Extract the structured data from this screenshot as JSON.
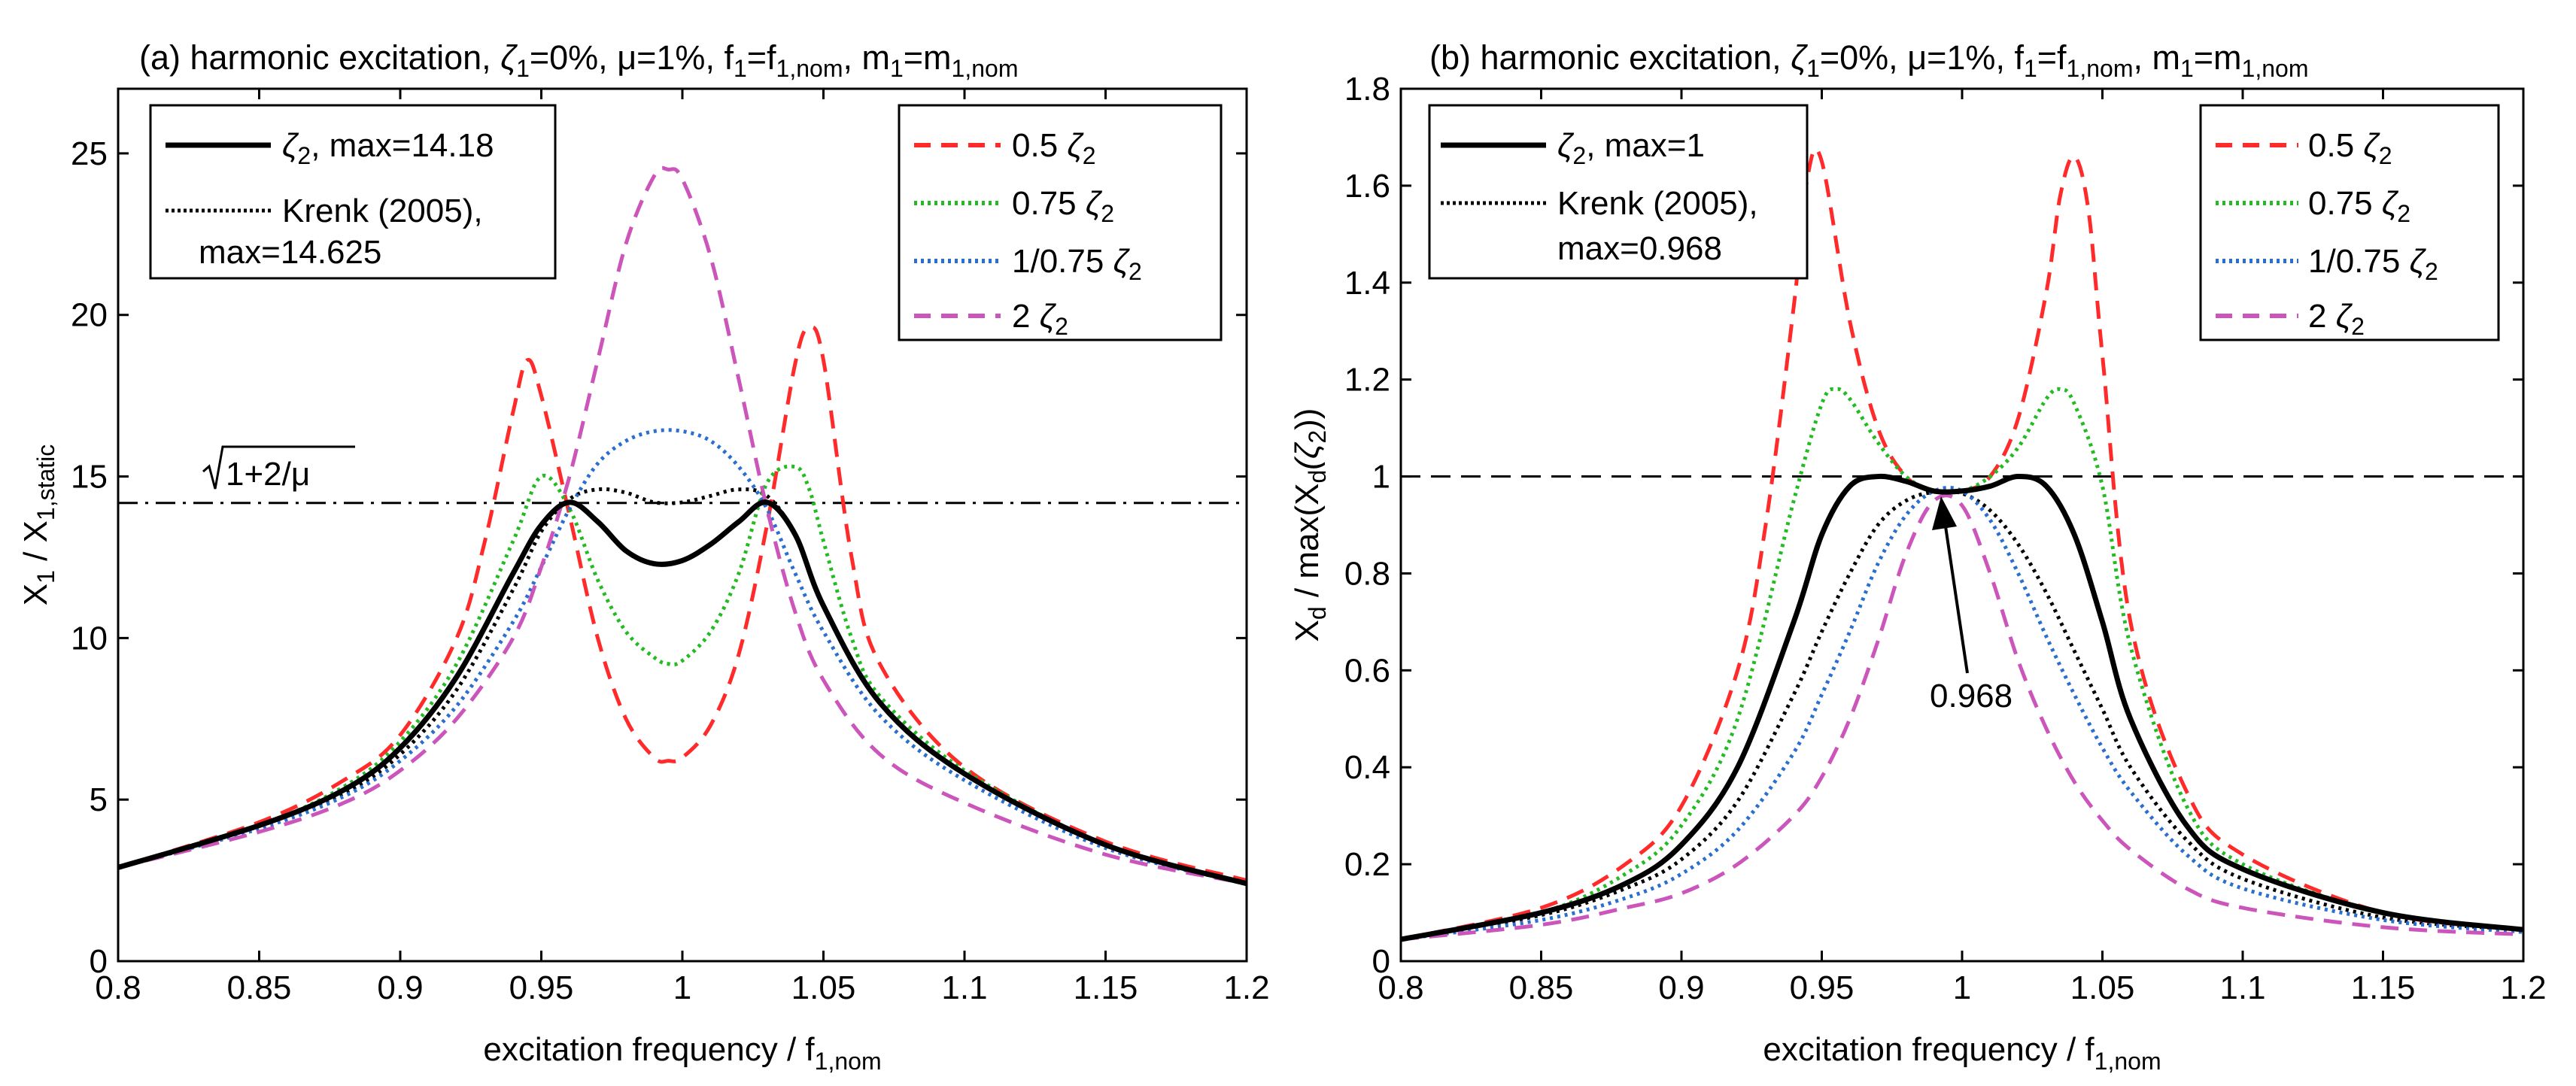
{
  "chart_data": [
    {
      "panel": "a",
      "type": "line",
      "title": "(a) harmonic excitation, ζ1=0%, μ=1%, f1=f1,nom, m1=m1,nom",
      "title_parts": {
        "prefix": "(a) harmonic excitation, ",
        "z": "ζ",
        "z_sub": "1",
        "eq0": "=0%, ",
        "mu": "μ",
        "eq1": "=1%, f",
        "f_sub": "1",
        "eq2": "=f",
        "fnom_sub": "1,nom",
        "eq3": ", m",
        "m_sub": "1",
        "eq4": "=m",
        "mnom_sub": "1,nom"
      },
      "xlabel": "excitation frequency / f1,nom",
      "xlabel_parts": {
        "main": "excitation frequency / f",
        "sub": "1,nom"
      },
      "ylabel": "X1 / X1,static",
      "ylabel_parts": {
        "a": "X",
        "a_sub": "1",
        "b": " / X",
        "b_sub": "1,static"
      },
      "xlim": [
        0.8,
        1.2
      ],
      "ylim": [
        0,
        27
      ],
      "xticks": [
        "0.8",
        "0.85",
        "0.9",
        "0.95",
        "1",
        "1.05",
        "1.1",
        "1.15",
        "1.2"
      ],
      "yticks": [
        "0",
        "5",
        "10",
        "15",
        "20",
        "25"
      ],
      "reference_line": {
        "y": 14.18,
        "label": "√1+2/μ",
        "label_root": "1+2/μ",
        "style": "dashdot"
      },
      "legend_left": [
        {
          "series": "zeta2",
          "line1": "ζ2, max=14.18",
          "sym": "ζ",
          "sub": "2",
          "rest": ", max=14.18"
        },
        {
          "series": "krenk",
          "line1": "Krenk (2005),",
          "line2": "max=14.625"
        }
      ],
      "legend_right": [
        {
          "series": "half",
          "label": "0.5 ζ2",
          "pre": "0.5 ",
          "sym": "ζ",
          "sub": "2"
        },
        {
          "series": "threequarter",
          "label": "0.75 ζ2",
          "pre": "0.75 ",
          "sym": "ζ",
          "sub": "2"
        },
        {
          "series": "inv",
          "label": "1/0.75 ζ2",
          "pre": "1/0.75 ",
          "sym": "ζ",
          "sub": "2"
        },
        {
          "series": "double",
          "label": "2 ζ2",
          "pre": "2 ",
          "sym": "ζ",
          "sub": "2"
        }
      ],
      "series": [
        {
          "id": "zeta2",
          "name": "ζ2, max=14.18",
          "color": "#000000",
          "dash": "solid",
          "width": 7,
          "x": [
            0.8,
            0.85,
            0.88,
            0.9,
            0.92,
            0.94,
            0.95,
            0.96,
            0.97,
            0.98,
            0.99,
            1.0,
            1.01,
            1.02,
            1.03,
            1.04,
            1.05,
            1.07,
            1.1,
            1.15,
            1.2
          ],
          "y": [
            2.9,
            4.2,
            5.3,
            6.6,
            8.8,
            12.0,
            13.5,
            14.2,
            13.6,
            12.7,
            12.3,
            12.4,
            12.9,
            13.6,
            14.2,
            13.2,
            11.0,
            8.0,
            5.8,
            3.6,
            2.4
          ]
        },
        {
          "id": "krenk",
          "name": "Krenk (2005)",
          "color": "#000000",
          "dash": "dotted",
          "width": 5,
          "x": [
            0.8,
            0.85,
            0.88,
            0.9,
            0.92,
            0.94,
            0.95,
            0.96,
            0.97,
            0.98,
            0.99,
            1.0,
            1.01,
            1.02,
            1.03,
            1.04,
            1.05,
            1.07,
            1.1,
            1.15,
            1.2
          ],
          "y": [
            2.9,
            4.2,
            5.2,
            6.4,
            8.4,
            11.5,
            13.3,
            14.3,
            14.6,
            14.5,
            14.2,
            14.2,
            14.4,
            14.6,
            14.4,
            13.2,
            11.0,
            8.0,
            5.8,
            3.6,
            2.4
          ]
        },
        {
          "id": "half",
          "name": "0.5 ζ2",
          "color": "#ff2b2b",
          "dash": "dashed",
          "width": 5,
          "x": [
            0.8,
            0.85,
            0.88,
            0.9,
            0.92,
            0.93,
            0.94,
            0.945,
            0.95,
            0.96,
            0.97,
            0.98,
            0.99,
            0.995,
            1.0,
            1.01,
            1.02,
            1.03,
            1.04,
            1.045,
            1.05,
            1.06,
            1.07,
            1.1,
            1.15,
            1.2
          ],
          "y": [
            2.9,
            4.3,
            5.6,
            7.0,
            10.0,
            13.0,
            17.0,
            18.6,
            17.5,
            13.8,
            10.0,
            7.5,
            6.3,
            6.2,
            6.3,
            7.3,
            9.5,
            13.5,
            18.5,
            19.6,
            18.6,
            12.5,
            9.2,
            6.0,
            3.7,
            2.5
          ]
        },
        {
          "id": "threequarter",
          "name": "0.75 ζ2",
          "color": "#22bb22",
          "dash": "dotted",
          "width": 5,
          "x": [
            0.8,
            0.85,
            0.88,
            0.9,
            0.92,
            0.94,
            0.95,
            0.96,
            0.97,
            0.98,
            0.99,
            0.995,
            1.0,
            1.01,
            1.02,
            1.03,
            1.04,
            1.045,
            1.05,
            1.06,
            1.07,
            1.1,
            1.15,
            1.2
          ],
          "y": [
            2.9,
            4.2,
            5.4,
            6.8,
            9.2,
            13.0,
            15.0,
            14.0,
            11.8,
            10.2,
            9.4,
            9.2,
            9.3,
            10.2,
            12.0,
            14.8,
            15.3,
            14.6,
            13.0,
            10.0,
            8.2,
            5.9,
            3.6,
            2.4
          ]
        },
        {
          "id": "inv",
          "name": "1/0.75 ζ2",
          "color": "#2a6fcf",
          "dash": "dotted",
          "width": 5,
          "x": [
            0.8,
            0.85,
            0.88,
            0.9,
            0.92,
            0.94,
            0.95,
            0.96,
            0.97,
            0.98,
            0.99,
            1.0,
            1.01,
            1.02,
            1.03,
            1.04,
            1.05,
            1.07,
            1.1,
            1.15,
            1.2
          ],
          "y": [
            2.9,
            4.1,
            5.1,
            6.2,
            7.9,
            10.5,
            12.2,
            14.0,
            15.4,
            16.1,
            16.4,
            16.4,
            16.1,
            15.3,
            14.0,
            12.0,
            10.2,
            7.6,
            5.6,
            3.5,
            2.4
          ]
        },
        {
          "id": "double",
          "name": "2 ζ2",
          "color": "#cc55bb",
          "dash": "dashed",
          "width": 5,
          "x": [
            0.8,
            0.85,
            0.88,
            0.9,
            0.92,
            0.94,
            0.95,
            0.96,
            0.97,
            0.98,
            0.99,
            0.995,
            1.0,
            1.01,
            1.02,
            1.03,
            1.04,
            1.05,
            1.07,
            1.1,
            1.15,
            1.2
          ],
          "y": [
            2.9,
            4.0,
            4.9,
            5.9,
            7.5,
            10.0,
            12.2,
            15.0,
            18.6,
            22.2,
            24.3,
            24.5,
            24.2,
            21.8,
            18.0,
            14.0,
            10.8,
            8.7,
            6.4,
            4.9,
            3.3,
            2.4
          ]
        }
      ]
    },
    {
      "panel": "b",
      "type": "line",
      "title": "(b) harmonic excitation, ζ1=0%, μ=1%, f1=f1,nom, m1=m1,nom",
      "title_parts": {
        "prefix": "(b) harmonic excitation, ",
        "z": "ζ",
        "z_sub": "1",
        "eq0": "=0%, ",
        "mu": "μ",
        "eq1": "=1%, f",
        "f_sub": "1",
        "eq2": "=f",
        "fnom_sub": "1,nom",
        "eq3": ", m",
        "m_sub": "1",
        "eq4": "=m",
        "mnom_sub": "1,nom"
      },
      "xlabel": "excitation frequency / f1,nom",
      "xlabel_parts": {
        "main": "excitation frequency / f",
        "sub": "1,nom"
      },
      "ylabel": "Xd / max(Xd(ζ2))",
      "ylabel_parts": {
        "a": "X",
        "a_sub": "d",
        "b": " / max(X",
        "b_sub": "d",
        "c": "(ζ",
        "c_sub": "2",
        "d": "))"
      },
      "xlim": [
        0.8,
        1.2
      ],
      "ylim": [
        0,
        1.8
      ],
      "xticks": [
        "0.8",
        "0.85",
        "0.9",
        "0.95",
        "1",
        "1.05",
        "1.1",
        "1.15",
        "1.2"
      ],
      "yticks": [
        "0",
        "0.2",
        "0.4",
        "0.6",
        "0.8",
        "1",
        "1.2",
        "1.4",
        "1.6",
        "1.8"
      ],
      "reference_line": {
        "y": 1.0,
        "style": "dashed"
      },
      "annotation": {
        "text": "0.968",
        "x": 0.995,
        "y": 0.968
      },
      "legend_left": [
        {
          "series": "zeta2",
          "line1": "ζ2, max=1",
          "sym": "ζ",
          "sub": "2",
          "rest": ", max=1"
        },
        {
          "series": "krenk",
          "line1": "Krenk (2005),",
          "line2": "max=0.968"
        }
      ],
      "legend_right": [
        {
          "series": "half",
          "label": "0.5 ζ2",
          "pre": "0.5 ",
          "sym": "ζ",
          "sub": "2"
        },
        {
          "series": "threequarter",
          "label": "0.75 ζ2",
          "pre": "0.75 ",
          "sym": "ζ",
          "sub": "2"
        },
        {
          "series": "inv",
          "label": "1/0.75 ζ2",
          "pre": "1/0.75 ",
          "sym": "ζ",
          "sub": "2"
        },
        {
          "series": "double",
          "label": "2 ζ2",
          "pre": "2 ",
          "sym": "ζ",
          "sub": "2"
        }
      ],
      "series": [
        {
          "id": "zeta2",
          "name": "ζ2, max=1",
          "color": "#000000",
          "dash": "solid",
          "width": 7,
          "x": [
            0.8,
            0.85,
            0.88,
            0.9,
            0.92,
            0.94,
            0.95,
            0.96,
            0.97,
            0.98,
            0.99,
            1.0,
            1.01,
            1.02,
            1.03,
            1.04,
            1.05,
            1.06,
            1.08,
            1.1,
            1.15,
            1.2
          ],
          "y": [
            0.045,
            0.1,
            0.16,
            0.24,
            0.4,
            0.7,
            0.88,
            0.98,
            1.0,
            0.99,
            0.97,
            0.97,
            0.98,
            1.0,
            0.98,
            0.88,
            0.7,
            0.5,
            0.28,
            0.19,
            0.1,
            0.065
          ]
        },
        {
          "id": "krenk",
          "name": "Krenk (2005)",
          "color": "#000000",
          "dash": "dotted",
          "width": 5,
          "x": [
            0.8,
            0.85,
            0.88,
            0.9,
            0.92,
            0.94,
            0.95,
            0.96,
            0.97,
            0.98,
            0.99,
            1.0,
            1.01,
            1.02,
            1.03,
            1.04,
            1.05,
            1.06,
            1.08,
            1.1,
            1.15,
            1.2
          ],
          "y": [
            0.045,
            0.095,
            0.15,
            0.21,
            0.33,
            0.55,
            0.68,
            0.8,
            0.9,
            0.95,
            0.968,
            0.965,
            0.93,
            0.86,
            0.76,
            0.64,
            0.52,
            0.4,
            0.25,
            0.17,
            0.09,
            0.065
          ]
        },
        {
          "id": "half",
          "name": "0.5 ζ2",
          "color": "#ff2b2b",
          "dash": "dashed",
          "width": 5,
          "x": [
            0.8,
            0.85,
            0.88,
            0.9,
            0.92,
            0.93,
            0.94,
            0.945,
            0.95,
            0.96,
            0.97,
            0.98,
            0.99,
            1.0,
            1.01,
            1.02,
            1.03,
            1.035,
            1.04,
            1.045,
            1.05,
            1.06,
            1.08,
            1.1,
            1.15,
            1.2
          ],
          "y": [
            0.045,
            0.11,
            0.2,
            0.32,
            0.6,
            0.9,
            1.35,
            1.62,
            1.65,
            1.32,
            1.1,
            1.0,
            0.97,
            0.97,
            1.0,
            1.12,
            1.38,
            1.58,
            1.66,
            1.55,
            1.25,
            0.7,
            0.35,
            0.22,
            0.1,
            0.065
          ]
        },
        {
          "id": "threequarter",
          "name": "0.75 ζ2",
          "color": "#22bb22",
          "dash": "dotted",
          "width": 5,
          "x": [
            0.8,
            0.85,
            0.88,
            0.9,
            0.92,
            0.94,
            0.95,
            0.955,
            0.96,
            0.97,
            0.98,
            0.99,
            1.0,
            1.01,
            1.02,
            1.03,
            1.035,
            1.04,
            1.05,
            1.06,
            1.08,
            1.1,
            1.15,
            1.2
          ],
          "y": [
            0.045,
            0.1,
            0.18,
            0.28,
            0.5,
            0.95,
            1.15,
            1.18,
            1.16,
            1.07,
            1.0,
            0.97,
            0.97,
            1.0,
            1.06,
            1.16,
            1.18,
            1.15,
            0.98,
            0.65,
            0.32,
            0.2,
            0.1,
            0.065
          ]
        },
        {
          "id": "inv",
          "name": "1/0.75 ζ2",
          "color": "#2a6fcf",
          "dash": "dotted",
          "width": 5,
          "x": [
            0.8,
            0.85,
            0.88,
            0.9,
            0.92,
            0.94,
            0.95,
            0.96,
            0.97,
            0.98,
            0.99,
            1.0,
            1.01,
            1.02,
            1.03,
            1.04,
            1.05,
            1.06,
            1.08,
            1.1,
            1.15,
            1.2
          ],
          "y": [
            0.045,
            0.085,
            0.13,
            0.18,
            0.27,
            0.43,
            0.55,
            0.68,
            0.82,
            0.92,
            0.97,
            0.97,
            0.91,
            0.8,
            0.67,
            0.55,
            0.44,
            0.35,
            0.22,
            0.15,
            0.085,
            0.06
          ]
        },
        {
          "id": "double",
          "name": "2 ζ2",
          "color": "#cc55bb",
          "dash": "dashed",
          "width": 5,
          "x": [
            0.8,
            0.85,
            0.88,
            0.9,
            0.92,
            0.94,
            0.95,
            0.96,
            0.97,
            0.98,
            0.99,
            1.0,
            1.01,
            1.02,
            1.03,
            1.04,
            1.05,
            1.06,
            1.08,
            1.1,
            1.15,
            1.2
          ],
          "y": [
            0.045,
            0.075,
            0.11,
            0.14,
            0.2,
            0.3,
            0.38,
            0.5,
            0.66,
            0.84,
            0.95,
            0.94,
            0.8,
            0.62,
            0.48,
            0.37,
            0.29,
            0.23,
            0.15,
            0.11,
            0.07,
            0.055
          ]
        }
      ]
    }
  ]
}
